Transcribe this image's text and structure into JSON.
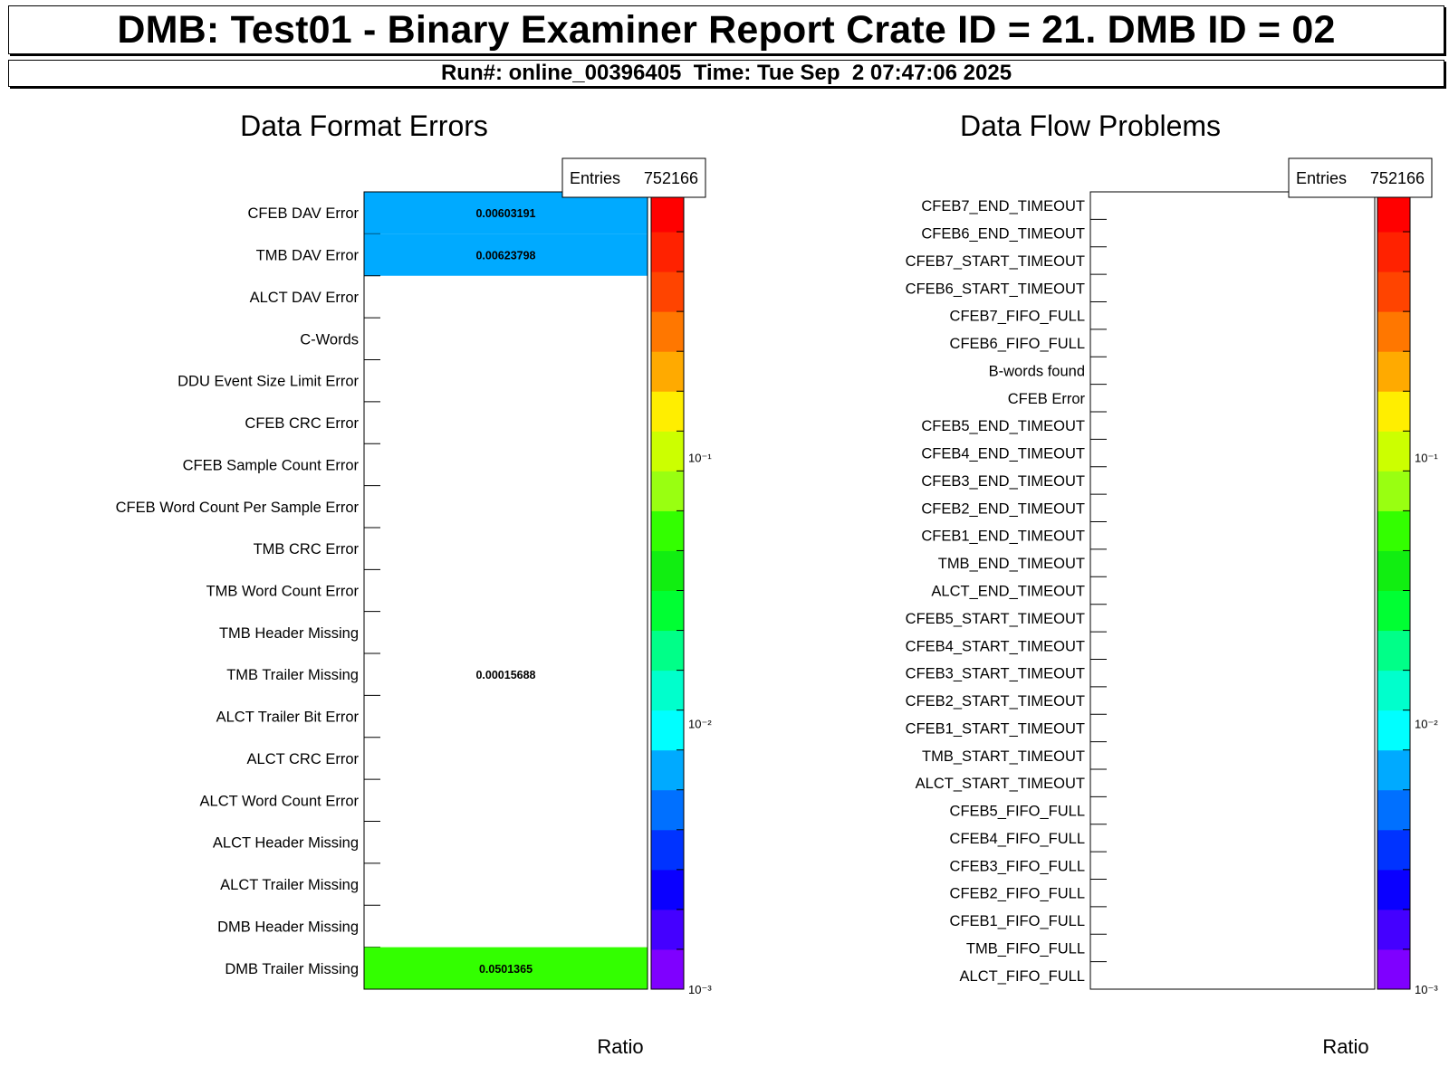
{
  "header": {
    "title": "DMB: Test01 - Binary Examiner Report Crate ID = 21. DMB ID = 02",
    "run_info": "Run#: online_00396405  Time: Tue Sep  2 07:47:06 2025"
  },
  "chart_data": [
    {
      "type": "heatmap",
      "title": "Data Format Errors",
      "zlabel": "Ratio",
      "z_scale": "log",
      "zlim": [
        0.001,
        1
      ],
      "z_ticks": [
        {
          "label": "10⁻¹",
          "value": 0.1
        },
        {
          "label": "10⁻²",
          "value": 0.01
        },
        {
          "label": "10⁻³",
          "value": 0.001
        }
      ],
      "stats": {
        "label": "Entries",
        "value": "752166"
      },
      "categories": [
        "CFEB DAV Error",
        "TMB DAV Error",
        "ALCT DAV Error",
        "C-Words",
        "DDU Event Size Limit Error",
        "CFEB CRC Error",
        "CFEB Sample Count Error",
        "CFEB Word Count Per Sample Error",
        "TMB CRC Error",
        "TMB Word Count Error",
        "TMB Header Missing",
        "TMB Trailer Missing",
        "ALCT Trailer Bit Error",
        "ALCT CRC Error",
        "ALCT Word Count Error",
        "ALCT Header Missing",
        "ALCT Trailer Missing",
        "DMB Header Missing",
        "DMB Trailer Missing"
      ],
      "values": [
        0.00603191,
        0.00623798,
        0,
        0,
        0,
        0,
        0,
        0,
        0,
        0,
        0,
        0.00015688,
        0,
        0,
        0,
        0,
        0,
        0,
        0.0501365
      ],
      "value_labels": [
        "0.00603191",
        "0.00623798",
        "",
        "",
        "",
        "",
        "",
        "",
        "",
        "",
        "",
        "0.00015688",
        "",
        "",
        "",
        "",
        "",
        "",
        "0.0501365"
      ]
    },
    {
      "type": "heatmap",
      "title": "Data Flow Problems",
      "zlabel": "Ratio",
      "z_scale": "log",
      "zlim": [
        0.001,
        1
      ],
      "z_ticks": [
        {
          "label": "10⁻¹",
          "value": 0.1
        },
        {
          "label": "10⁻²",
          "value": 0.01
        },
        {
          "label": "10⁻³",
          "value": 0.001
        }
      ],
      "stats": {
        "label": "Entries",
        "value": "752166"
      },
      "categories": [
        "CFEB7_END_TIMEOUT",
        "CFEB6_END_TIMEOUT",
        "CFEB7_START_TIMEOUT",
        "CFEB6_START_TIMEOUT",
        "CFEB7_FIFO_FULL",
        "CFEB6_FIFO_FULL",
        "B-words found",
        "CFEB Error",
        "CFEB5_END_TIMEOUT",
        "CFEB4_END_TIMEOUT",
        "CFEB3_END_TIMEOUT",
        "CFEB2_END_TIMEOUT",
        "CFEB1_END_TIMEOUT",
        "TMB_END_TIMEOUT",
        "ALCT_END_TIMEOUT",
        "CFEB5_START_TIMEOUT",
        "CFEB4_START_TIMEOUT",
        "CFEB3_START_TIMEOUT",
        "CFEB2_START_TIMEOUT",
        "CFEB1_START_TIMEOUT",
        "TMB_START_TIMEOUT",
        "ALCT_START_TIMEOUT",
        "CFEB5_FIFO_FULL",
        "CFEB4_FIFO_FULL",
        "CFEB3_FIFO_FULL",
        "CFEB2_FIFO_FULL",
        "CFEB1_FIFO_FULL",
        "TMB_FIFO_FULL",
        "ALCT_FIFO_FULL"
      ],
      "values": [
        0,
        0,
        0,
        0,
        0,
        0,
        0,
        0,
        0,
        0,
        0,
        0,
        0,
        0,
        0,
        0,
        0,
        0,
        0,
        0,
        0,
        0,
        0,
        0,
        0,
        0,
        0,
        0,
        0
      ],
      "value_labels": []
    }
  ],
  "palette": [
    "#7f00ff",
    "#4400ff",
    "#0a00ff",
    "#0033ff",
    "#0070ff",
    "#00aaff",
    "#00ffff",
    "#00ffcc",
    "#00ff88",
    "#00ff33",
    "#11ee11",
    "#33ff00",
    "#99ff11",
    "#ccff00",
    "#ffee00",
    "#ffaa00",
    "#ff7700",
    "#ff4400",
    "#ff2200",
    "#ff0000"
  ]
}
